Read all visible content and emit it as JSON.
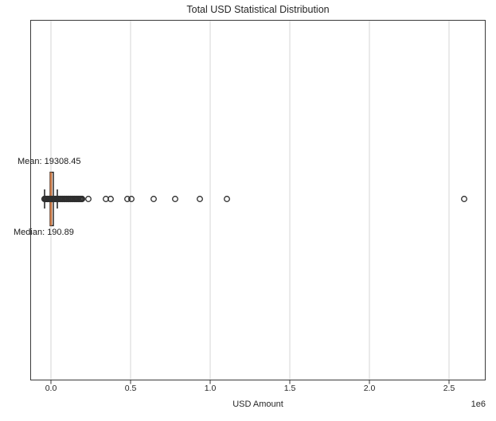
{
  "figure": {
    "background": "#ffffff"
  },
  "chart_data": {
    "type": "boxplot",
    "orientation": "horizontal",
    "title": "Total USD Statistical Distribution",
    "xlabel": "USD Amount",
    "x_offset_text": "1e6",
    "x_ticks_usd": [
      0,
      500000,
      1000000,
      1500000,
      2000000,
      2500000
    ],
    "x_tick_labels": [
      "0.0",
      "0.5",
      "1.0",
      "1.5",
      "2.0",
      "2.5"
    ],
    "xlim_usd": [
      -130000,
      2730000
    ],
    "grid": "vertical-only",
    "legend": "none",
    "annotations": {
      "mean_label": "Mean: 19308.45",
      "median_label": "Median: 190.89"
    },
    "stats": {
      "mean_usd": 19308.45,
      "median_usd": 190.89,
      "q1_usd": -5000,
      "q3_usd": 15000,
      "whisker_low_usd": -40000,
      "whisker_high_usd": 40000
    },
    "outlier_cluster_usd": {
      "min": -40000,
      "max": 195000,
      "count": 30
    },
    "outliers_usd": [
      235000,
      345000,
      375000,
      480000,
      505000,
      645000,
      780000,
      935000,
      1105000,
      2595000
    ],
    "colors": {
      "median_line": "#c5713d",
      "box_edge": "#1a1a1a",
      "box_fill": "#ffffff",
      "outlier_edge": "#2e2e2e",
      "grid_line": "#d4d4d4",
      "spine": "#3a3a3a",
      "text": "#262626"
    }
  }
}
